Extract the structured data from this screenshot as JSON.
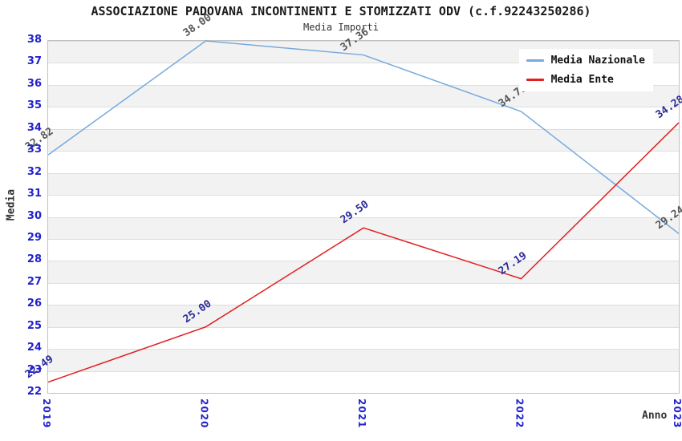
{
  "title": "ASSOCIAZIONE PADOVANA INCONTINENTI E STOMIZZATI ODV (c.f.92243250286)",
  "subtitle": "Media Importi",
  "chart_data": {
    "type": "line",
    "x": [
      "2019",
      "2020",
      "2021",
      "2022",
      "2023"
    ],
    "xlabel": "Anno",
    "ylabel": "Media",
    "ylim": [
      22,
      38
    ],
    "ytick_step": 1,
    "yticks": [
      "38",
      "37",
      "36",
      "35",
      "34",
      "33",
      "32",
      "31",
      "30",
      "29",
      "28",
      "27",
      "26",
      "25",
      "24",
      "23",
      "22"
    ],
    "grid": "horizontal gridlines with alternating gray/white bands",
    "legend_position": "top-right inside plot",
    "series": [
      {
        "name": "Media Nazionale",
        "color": "#77aadd",
        "label_color": "#555555",
        "values": [
          32.82,
          38.0,
          37.36,
          34.79,
          29.24
        ],
        "labels": [
          "32.82",
          "38.00",
          "37.36",
          "34.79",
          "29.24"
        ]
      },
      {
        "name": "Media Ente",
        "color": "#e02020",
        "label_color": "#2a2a99",
        "values": [
          22.49,
          25.0,
          29.5,
          27.19,
          34.28
        ],
        "labels": [
          "22.49",
          "25.00",
          "29.50",
          "27.19",
          "34.28"
        ]
      }
    ]
  },
  "colors": {
    "tick_label": "#2222cc",
    "band_gray": "#f2f2f2",
    "band_white": "#ffffff",
    "axis_text": "#333333",
    "title_text": "#1a1a1a"
  }
}
